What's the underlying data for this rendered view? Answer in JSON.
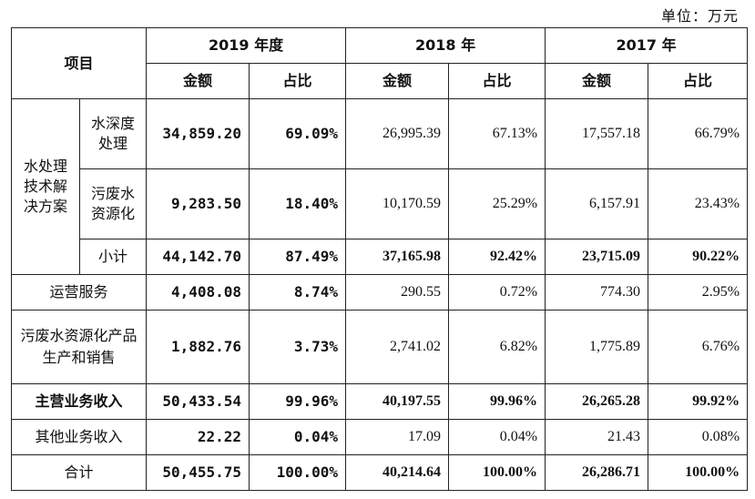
{
  "unit_label": "单位：万元",
  "header": {
    "item": "项目",
    "years": [
      "2019 年度",
      "2018 年",
      "2017 年"
    ],
    "amount": "金额",
    "ratio": "占比"
  },
  "group": {
    "label": "水处理技术解决方案",
    "rows": [
      {
        "name": "水深度处理",
        "y2019_amount": "34,859.20",
        "y2019_ratio": "69.09%",
        "y2018_amount": "26,995.39",
        "y2018_ratio": "67.13%",
        "y2017_amount": "17,557.18",
        "y2017_ratio": "66.79%"
      },
      {
        "name": "污废水资源化",
        "y2019_amount": "9,283.50",
        "y2019_ratio": "18.40%",
        "y2018_amount": "10,170.59",
        "y2018_ratio": "25.29%",
        "y2017_amount": "6,157.91",
        "y2017_ratio": "23.43%"
      }
    ],
    "subtotal": {
      "name": "小计",
      "y2019_amount": "44,142.70",
      "y2019_ratio": "87.49%",
      "y2018_amount": "37,165.98",
      "y2018_ratio": "92.42%",
      "y2017_amount": "23,715.09",
      "y2017_ratio": "90.22%"
    }
  },
  "rows": [
    {
      "name": "运营服务",
      "y2019_amount": "4,408.08",
      "y2019_ratio": "8.74%",
      "y2018_amount": "290.55",
      "y2018_ratio": "0.72%",
      "y2017_amount": "774.30",
      "y2017_ratio": "2.95%"
    },
    {
      "name": "污废水资源化产品生产和销售",
      "y2019_amount": "1,882.76",
      "y2019_ratio": "3.73%",
      "y2018_amount": "2,741.02",
      "y2018_ratio": "6.82%",
      "y2017_amount": "1,775.89",
      "y2017_ratio": "6.76%"
    },
    {
      "name": "主营业务收入",
      "y2019_amount": "50,433.54",
      "y2019_ratio": "99.96%",
      "y2018_amount": "40,197.55",
      "y2018_ratio": "99.96%",
      "y2017_amount": "26,265.28",
      "y2017_ratio": "99.92%"
    },
    {
      "name": "其他业务收入",
      "y2019_amount": "22.22",
      "y2019_ratio": "0.04%",
      "y2018_amount": "17.09",
      "y2018_ratio": "0.04%",
      "y2017_amount": "21.43",
      "y2017_ratio": "0.08%"
    },
    {
      "name": "合计",
      "y2019_amount": "50,455.75",
      "y2019_ratio": "100.00%",
      "y2018_amount": "40,214.64",
      "y2018_ratio": "100.00%",
      "y2017_amount": "26,286.71",
      "y2017_ratio": "100.00%"
    }
  ]
}
